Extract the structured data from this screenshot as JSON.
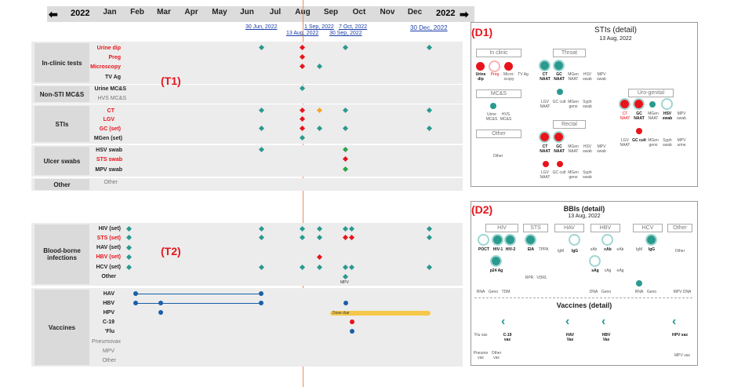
{
  "timeline": {
    "year_left": "2022",
    "year_right": "2022",
    "months": [
      "Jan",
      "Feb",
      "Mar",
      "Apr",
      "May",
      "Jun",
      "Jul",
      "Aug",
      "Sep",
      "Oct",
      "Nov",
      "Dec"
    ],
    "dates": [
      "30 Jun, 2022",
      "1 Sep, 2022",
      "7 Oct, 2022",
      "13 Aug, 2022",
      "30 Sep, 2022",
      "30 Dec, 2022"
    ]
  },
  "table1": {
    "tag": "(T1)",
    "groups": [
      {
        "name": "In-clinic tests",
        "rows": [
          "Urine dip",
          "Preg",
          "Microscopy",
          "TV Ag"
        ]
      },
      {
        "name": "Non-STI MC&S",
        "rows": [
          "Urine MC&S",
          "HVS MC&S"
        ]
      },
      {
        "name": "STIs",
        "rows": [
          "CT",
          "LGV",
          "GC (set)",
          "MGen (set)"
        ]
      },
      {
        "name": "Ulcer swabs",
        "rows": [
          "HSV swab",
          "STS swab",
          "MPV swab"
        ]
      },
      {
        "name": "Other",
        "rows": [
          "Other"
        ]
      }
    ]
  },
  "table2": {
    "tag": "(T2)",
    "groups": [
      {
        "name": "Blood-borne infections",
        "rows": [
          "HIV (set)",
          "STS (set)",
          "HAV (set)",
          "HBV (set)",
          "HCV (set)",
          "Other"
        ]
      },
      {
        "name": "Vaccines",
        "rows": [
          "HAV",
          "HBV",
          "HPV",
          "C-19",
          "'Flu",
          "Pneumovax",
          "MPV",
          "Other"
        ]
      }
    ],
    "mpv_note": "MPV",
    "dose_due": "Dose due"
  },
  "d1": {
    "tag": "(D1)",
    "title": "STIs (detail)",
    "date": "13 Aug, 2022",
    "sections": [
      "In clinic",
      "Throat",
      "MC&S",
      "Uro-genital",
      "Other",
      "Rectal"
    ],
    "inclinic": [
      "Urine dip",
      "Preg",
      "Micro-scopy",
      "TV Ag"
    ],
    "throat": [
      "CT NAAT",
      "GC NAAT",
      "MGen NAAT",
      "HSV swab",
      "MPV swab"
    ],
    "throat2": [
      "LGV NAAT",
      "GC cult",
      "MGen geno",
      "Syph swab"
    ],
    "mcs": [
      "Urine MC&S",
      "HVS MC&S"
    ],
    "uro": [
      "CT NAAT",
      "GC NAAT",
      "MGen NAAT",
      "HSV swab",
      "MPV swab"
    ],
    "uro2": [
      "LGV NAAT",
      "GC cult",
      "MGen geno",
      "Syph swab",
      "MPV urine"
    ],
    "other": "Other",
    "rectal": [
      "CT NAAT",
      "GC NAAT",
      "MGen NAAT",
      "HSV swab",
      "MPV swab"
    ],
    "rectal2": [
      "LGV NAAT",
      "GC cult",
      "MGen geno",
      "Syph swab"
    ]
  },
  "d2": {
    "tag": "(D2)",
    "title": "BBIs (detail)",
    "date": "13 Aug, 2022",
    "sections": [
      "HIV",
      "STS",
      "HAV",
      "HBV",
      "HCV",
      "Other"
    ],
    "hiv": [
      "POCT",
      "HIV-1",
      "HIV-2",
      "p24 Ag"
    ],
    "sts": [
      "EIA",
      "TPPA"
    ],
    "hav": [
      "IgM",
      "IgG"
    ],
    "hbv": [
      "sAb",
      "cAb",
      "eAb",
      "sAg",
      "cAg",
      "eAg"
    ],
    "hcv": [
      "IgM",
      "IgG"
    ],
    "other": "Other",
    "rows3": [
      "RNA",
      "Geno",
      "TDM",
      "RPR",
      "VDRL",
      "DNA",
      "Geno",
      "RNA",
      "Geno",
      "MPV DNA"
    ],
    "vaccines_title": "Vaccines (detail)",
    "vax": [
      "'Flu vax",
      "C-19 vax",
      "HAV Vax",
      "HBV Vax",
      "HPV vax"
    ],
    "vax2": [
      "Pneumo vax",
      "Other vax",
      "MPV vax"
    ]
  },
  "colors": {
    "teal": "#2a9a8f",
    "red": "#e8141b",
    "orange": "#f6a623",
    "green": "#2ca44a",
    "blue": "#1a5fa8",
    "guide": "#f08a5d"
  }
}
